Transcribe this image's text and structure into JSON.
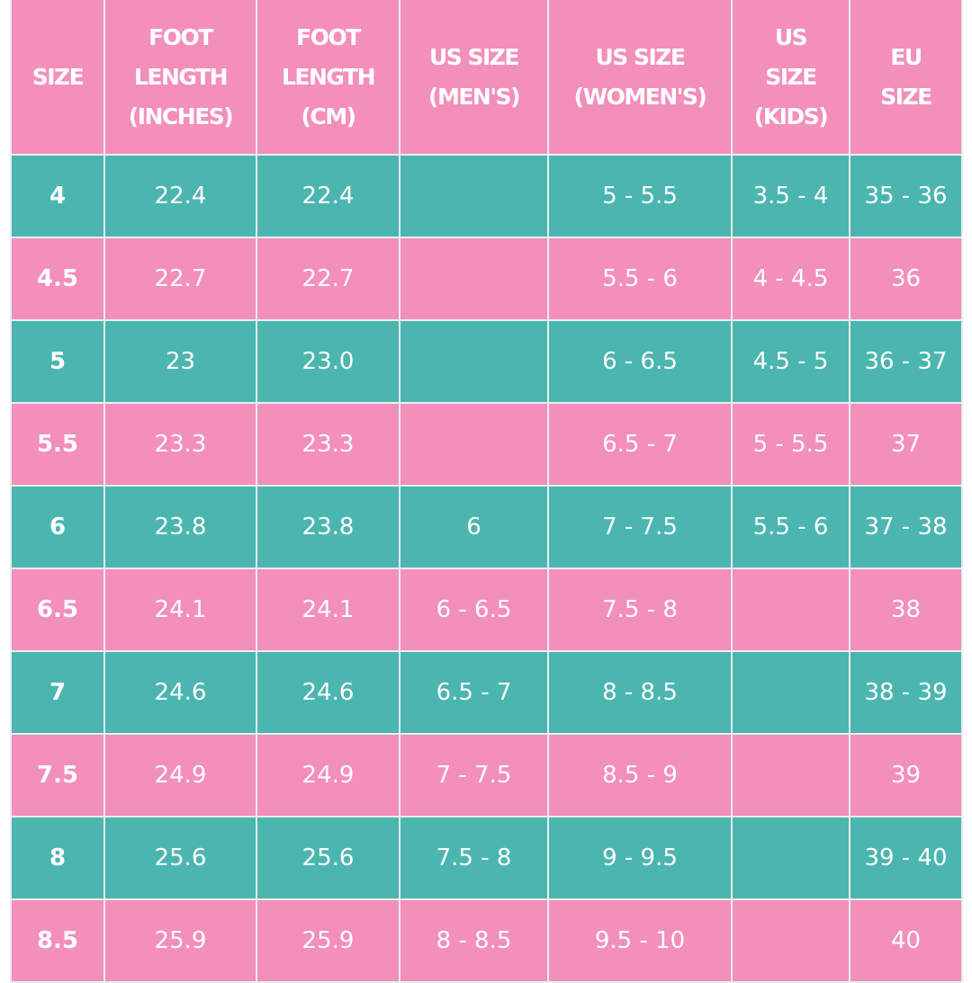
{
  "table": {
    "headers": [
      "SIZE",
      "FOOT LENGTH (INCHES)",
      "FOOT LENGTH (CM)",
      "US SIZE (MEN'S)",
      "US SIZE (WOMEN'S)",
      "US SIZE (KIDS)",
      "EU SIZE"
    ],
    "header_lines": [
      [
        "SIZE"
      ],
      [
        "FOOT",
        "LENGTH",
        "(INCHES)"
      ],
      [
        "FOOT",
        "LENGTH",
        "(CM)"
      ],
      [
        "US SIZE",
        "(MEN'S)"
      ],
      [
        "US SIZE",
        "(WOMEN'S)"
      ],
      [
        "US",
        "SIZE",
        "(KIDS)"
      ],
      [
        "EU",
        "SIZE"
      ]
    ],
    "rows": [
      {
        "size": "4",
        "inches": "22.4",
        "cm": "22.4",
        "men": "",
        "women": "5 - 5.5",
        "kids": "3.5 - 4",
        "eu": "35 - 36"
      },
      {
        "size": "4.5",
        "inches": "22.7",
        "cm": "22.7",
        "men": "",
        "women": "5.5 - 6",
        "kids": "4 - 4.5",
        "eu": "36"
      },
      {
        "size": "5",
        "inches": "23",
        "cm": "23.0",
        "men": "",
        "women": "6 - 6.5",
        "kids": "4.5 - 5",
        "eu": "36 - 37"
      },
      {
        "size": "5.5",
        "inches": "23.3",
        "cm": "23.3",
        "men": "",
        "women": "6.5 - 7",
        "kids": "5 - 5.5",
        "eu": "37"
      },
      {
        "size": "6",
        "inches": "23.8",
        "cm": "23.8",
        "men": "6",
        "women": "7 - 7.5",
        "kids": "5.5 - 6",
        "eu": "37 - 38"
      },
      {
        "size": "6.5",
        "inches": "24.1",
        "cm": "24.1",
        "men": "6 - 6.5",
        "women": "7.5 - 8",
        "kids": "",
        "eu": "38"
      },
      {
        "size": "7",
        "inches": "24.6",
        "cm": "24.6",
        "men": "6.5 - 7",
        "women": "8 - 8.5",
        "kids": "",
        "eu": "38 - 39"
      },
      {
        "size": "7.5",
        "inches": "24.9",
        "cm": "24.9",
        "men": "7 - 7.5",
        "women": "8.5 - 9",
        "kids": "",
        "eu": "39"
      },
      {
        "size": "8",
        "inches": "25.6",
        "cm": "25.6",
        "men": "7.5 - 8",
        "women": "9 - 9.5",
        "kids": "",
        "eu": "39 - 40"
      },
      {
        "size": "8.5",
        "inches": "25.9",
        "cm": "25.9",
        "men": "8 - 8.5",
        "women": "9.5 - 10",
        "kids": "",
        "eu": "40"
      }
    ]
  },
  "colors": {
    "pink": "#f28fba",
    "teal": "#4bb6b0",
    "text": "#ffffff",
    "border": "#e9eef0"
  }
}
